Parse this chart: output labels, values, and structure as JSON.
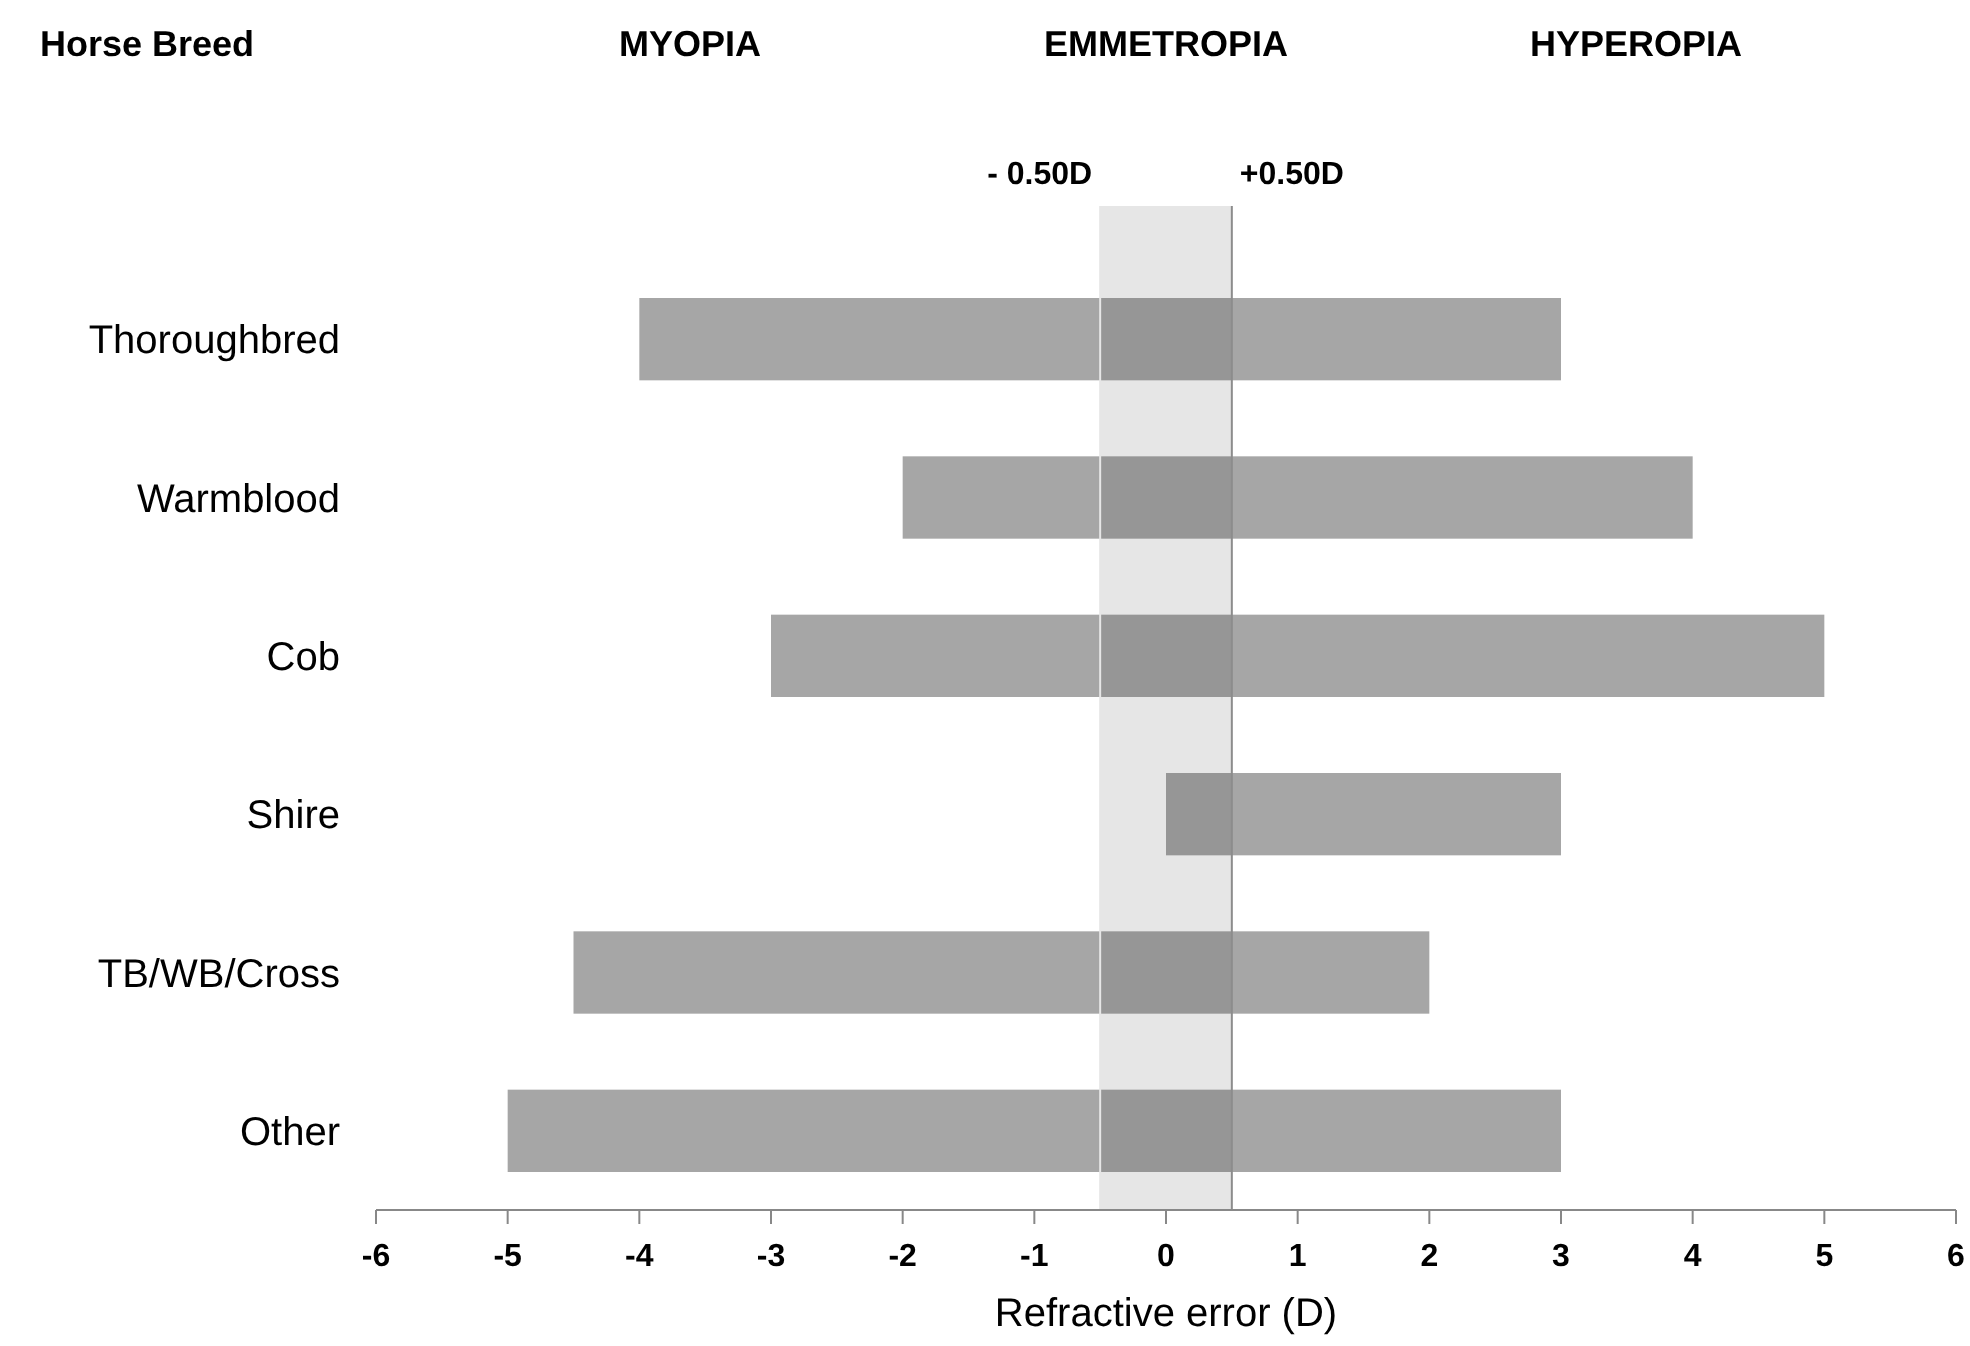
{
  "chart_data": {
    "type": "bar",
    "orientation": "horizontal",
    "xlabel": "Refractive error (D)",
    "categories": [
      "Thoroughbred",
      "Warmblood",
      "Cob",
      "Shire",
      "TB/WB/Cross",
      "Other"
    ],
    "base": [
      -4,
      -2,
      -3,
      0,
      -4.5,
      -5
    ],
    "values": [
      7,
      6,
      8,
      3,
      6.5,
      8
    ],
    "color": "#a6a6a6",
    "xlim": [
      -6,
      6
    ],
    "xticks": [
      -6,
      -5,
      -4,
      -3,
      -2,
      -1,
      0,
      1,
      2,
      3,
      4,
      5,
      6
    ],
    "bands": [
      {
        "axis": "x",
        "from": -0.5,
        "to": 0.5,
        "color": "#e6e6e6"
      }
    ],
    "ref_lines": [
      {
        "axis": "x",
        "value": -0.5,
        "label": "- 0.50D",
        "color": "#e6e6e6"
      },
      {
        "axis": "x",
        "value": 0.5,
        "label": "+0.50D",
        "color": "#8c8c8c"
      }
    ],
    "annotations": [
      "Horse Breed",
      "MYOPIA",
      "EMMETROPIA",
      "HYPEROPIA"
    ]
  }
}
